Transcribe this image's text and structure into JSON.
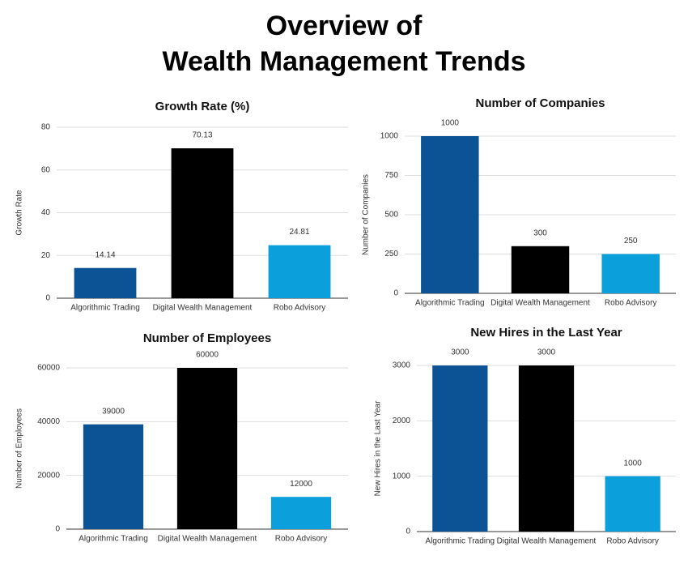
{
  "title_lines": [
    "Overview of",
    "Wealth Management Trends"
  ],
  "chart_data": [
    {
      "type": "bar",
      "title": "Growth Rate (%)",
      "y_label": "Growth Rate",
      "categories": [
        "Algorithmic Trading",
        "Digital Wealth Management",
        "Robo Advisory"
      ],
      "values": [
        14.14,
        70.13,
        24.81
      ],
      "colors": [
        "#0b5394",
        "#000000",
        "#0ba0db"
      ],
      "ylim": [
        0,
        80
      ],
      "yticks": [
        0,
        20,
        40,
        60,
        80
      ],
      "grid": true
    },
    {
      "type": "bar",
      "title": "Number of Companies",
      "y_label": "Number of Companies",
      "categories": [
        "Algorithmic Trading",
        "Digital Wealth Management",
        "Robo Advisory"
      ],
      "values": [
        1000,
        300,
        250
      ],
      "colors": [
        "#0b5394",
        "#000000",
        "#0ba0db"
      ],
      "ylim": [
        0,
        1000
      ],
      "yticks": [
        0,
        250,
        500,
        750,
        1000
      ],
      "grid": true
    },
    {
      "type": "bar",
      "title": "Number of Employees",
      "y_label": "Number of Employees",
      "categories": [
        "Algorithmic Trading",
        "Digital Wealth Management",
        "Robo Advisory"
      ],
      "values": [
        39000,
        60000,
        12000
      ],
      "colors": [
        "#0b5394",
        "#000000",
        "#0ba0db"
      ],
      "ylim": [
        0,
        60000
      ],
      "yticks": [
        0,
        20000,
        40000,
        60000
      ],
      "grid": true
    },
    {
      "type": "bar",
      "title": "New Hires in the Last Year",
      "y_label": "New Hires in the Last Year",
      "categories": [
        "Algorithmic Trading",
        "Digital Wealth Management",
        "Robo Advisory"
      ],
      "values": [
        3000,
        3000,
        1000
      ],
      "colors": [
        "#0b5394",
        "#000000",
        "#0ba0db"
      ],
      "ylim": [
        0,
        3000
      ],
      "yticks": [
        0,
        1000,
        2000,
        3000
      ],
      "grid": true
    }
  ]
}
